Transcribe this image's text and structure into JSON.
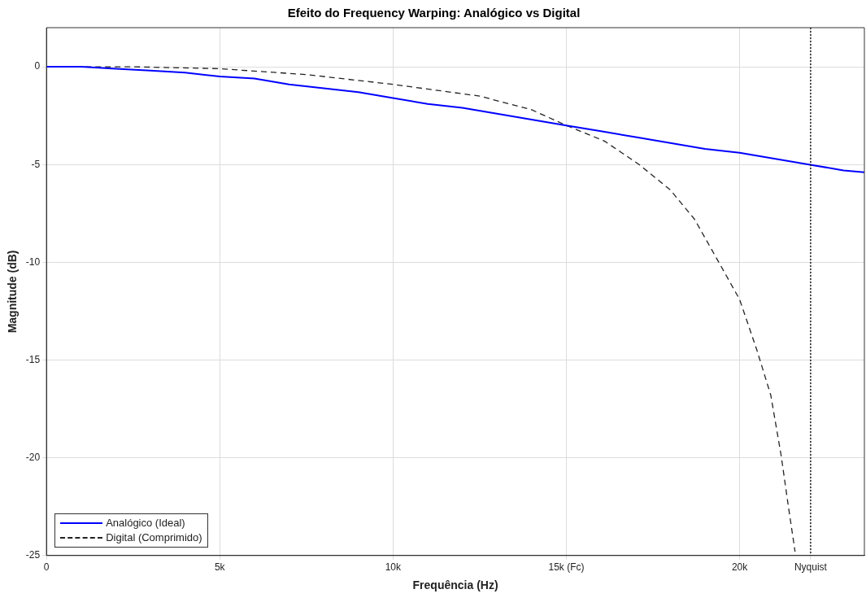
{
  "chart_data": {
    "type": "line",
    "title": "Efeito do Frequency Warping: Analógico vs Digital",
    "xlabel": "Frequência (Hz)",
    "ylabel": "Magnitude (dB)",
    "xlim": [
      0,
      23600
    ],
    "xticks": [
      0,
      {
        "value": 5000,
        "label": "5k"
      },
      {
        "value": 10000,
        "label": "10k"
      },
      {
        "value": 15000,
        "label": "15k (Fc)"
      },
      {
        "value": 20000,
        "label": "20k"
      },
      {
        "value": 22050,
        "label": "Nyquist"
      }
    ],
    "ylim": [
      -25,
      2
    ],
    "yticks": [
      -25,
      -20,
      -15,
      -10,
      -5,
      0
    ],
    "grid": true,
    "legend": "bottom left",
    "marker": "none",
    "ref_lines": [
      {
        "axis": "x",
        "value": 22050,
        "color": "#000000",
        "line_style": "dotted"
      }
    ],
    "series": [
      {
        "name": "Analógico (Ideal)",
        "color": "#0000ff",
        "line_style": "solid",
        "x": [
          0,
          1000,
          2000,
          3000,
          4000,
          5000,
          6000,
          7000,
          8000,
          9000,
          10000,
          11000,
          12000,
          13000,
          14000,
          15000,
          16000,
          17000,
          18000,
          19000,
          20000,
          21000,
          22000,
          23000,
          23600
        ],
        "values": [
          0,
          0,
          -0.1,
          -0.2,
          -0.3,
          -0.5,
          -0.6,
          -0.9,
          -1.1,
          -1.3,
          -1.6,
          -1.9,
          -2.1,
          -2.4,
          -2.7,
          -3.0,
          -3.3,
          -3.6,
          -3.9,
          -4.2,
          -4.4,
          -4.7,
          -5.0,
          -5.3,
          -5.4
        ]
      },
      {
        "name": "Digital (Comprimido)",
        "color": "#222222",
        "line_style": "dashed",
        "x": [
          0,
          2500,
          5000,
          7500,
          10000,
          12500,
          14000,
          15000,
          16100,
          17100,
          18000,
          18700,
          19400,
          20000,
          20500,
          20900,
          21200,
          21400,
          21600
        ],
        "values": [
          0,
          0,
          -0.1,
          -0.4,
          -0.9,
          -1.5,
          -2.2,
          -3.0,
          -3.8,
          -5.0,
          -6.3,
          -7.8,
          -10.0,
          -11.9,
          -14.5,
          -16.8,
          -19.9,
          -22.4,
          -24.8
        ]
      }
    ]
  }
}
